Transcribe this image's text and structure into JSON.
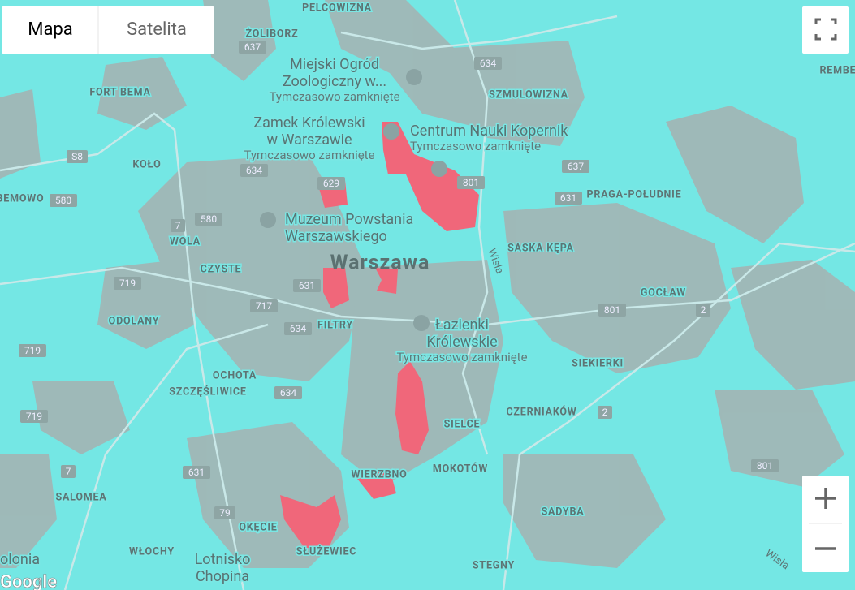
{
  "controls": {
    "map_types": [
      "Mapa",
      "Satelita"
    ]
  },
  "areas": [
    "PELCOWIZNA",
    "ŻOLIBORZ",
    "FORT BEMA",
    "KOŁO",
    "BEMOWO",
    "WOLA",
    "CZYSTE",
    "ODOLANY",
    "OCHOTA",
    "SZCZĘŚLIWICE",
    "SALOMEA",
    "WŁOCHY",
    "OKĘCIE",
    "SŁUŻEWIEC",
    "FILTRY",
    "SZMULOWIZNA",
    "PRAGA-POŁUDNIE",
    "SASKA KĘPA",
    "GOCŁAW",
    "SIEKIERKI",
    "CZERNIAKÓW",
    "SIELCE",
    "MOKOTÓW",
    "WIERZBNO",
    "SADYBA",
    "STEGNY",
    "REMBE"
  ],
  "city": "Warszawa",
  "rivers": [
    "Wisła",
    "Wisła"
  ],
  "pois": [
    {
      "name_lines": [
        "Miejski Ogród",
        "Zoologiczny w..."
      ],
      "status": "Tymczasowo zamknięte"
    },
    {
      "name_lines": [
        "Zamek Królewski",
        "w Warszawie"
      ],
      "status": "Tymczasowo zamknięte"
    },
    {
      "name_lines": [
        "Centrum Nauki Kopernik"
      ],
      "status": "Tymczasowo zamknięte"
    },
    {
      "name_lines": [
        "Muzeum Powstania",
        "Warszawskiego"
      ]
    },
    {
      "name_lines": [
        "Łazienki",
        "Królewskie"
      ],
      "status": "Tymczasowo zamknięte"
    },
    {
      "name_lines": [
        "Lotnisko",
        "Chopina"
      ]
    },
    {
      "name_lines": [
        "olonia"
      ]
    }
  ],
  "roads": [
    "637",
    "634",
    "S8",
    "634",
    "629",
    "801",
    "637",
    "631",
    "580",
    "580",
    "7",
    "719",
    "631",
    "717",
    "634",
    "719",
    "634",
    "719",
    "631",
    "7",
    "79",
    "801",
    "2",
    "2",
    "801"
  ],
  "logo": "Google"
}
